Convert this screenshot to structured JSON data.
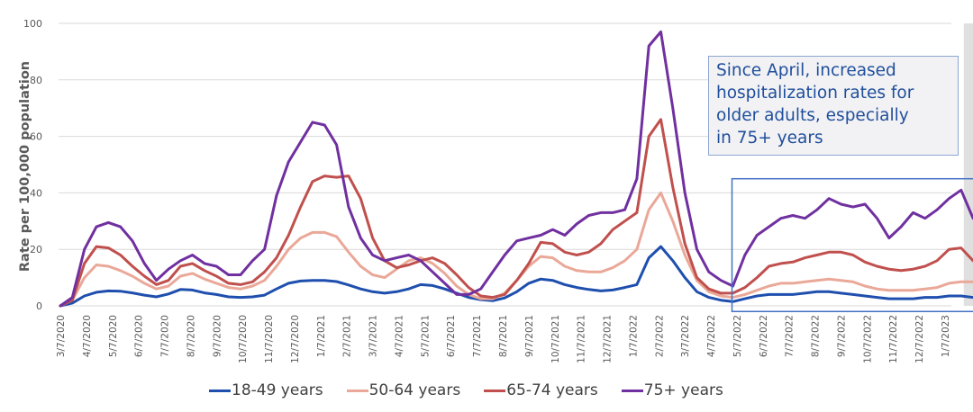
{
  "chart_data": {
    "type": "line",
    "title": "",
    "xlabel": "",
    "ylabel": "Rate per 100,000 population",
    "ylim": [
      0,
      100
    ],
    "yticks": [
      0,
      20,
      40,
      60,
      80,
      100
    ],
    "grid": true,
    "legend_position": "bottom",
    "x_unit": "weeks since 3/7/2020",
    "x": [
      0,
      2,
      4,
      6,
      8,
      10,
      12,
      14,
      16,
      18,
      20,
      22,
      24,
      26,
      28,
      30,
      32,
      34,
      36,
      38,
      40,
      42,
      44,
      46,
      48,
      50,
      52,
      54,
      56,
      58,
      60,
      62,
      64,
      66,
      68,
      70,
      72,
      74,
      76,
      78,
      80,
      82,
      84,
      86,
      88,
      90,
      92,
      94,
      96,
      98,
      100,
      102,
      104,
      106,
      108,
      110,
      112,
      114,
      116,
      118,
      120,
      122,
      124,
      126,
      128,
      130,
      132,
      134,
      136,
      138,
      140,
      142,
      144,
      146,
      148,
      150,
      152
    ],
    "xtick_labels": [
      "3/7/2020",
      "4/7/2020",
      "5/7/2020",
      "6/7/2020",
      "7/7/2020",
      "8/7/2020",
      "9/7/2020",
      "10/7/2020",
      "11/7/2020",
      "12/7/2020",
      "1/7/2021",
      "2/7/2021",
      "3/7/2021",
      "4/7/2021",
      "5/7/2021",
      "6/7/2021",
      "7/7/2021",
      "8/7/2021",
      "9/7/2021",
      "10/7/2021",
      "11/7/2021",
      "12/7/2021",
      "1/7/2022",
      "2/7/2022",
      "3/7/2022",
      "4/7/2022",
      "5/7/2022",
      "6/7/2022",
      "7/7/2022",
      "8/7/2022",
      "9/7/2022",
      "10/7/2022",
      "11/7/2022",
      "12/7/2022",
      "1/7/2023"
    ],
    "series": [
      {
        "name": "18-49 years",
        "color": "#1f4fae",
        "values": [
          0,
          1,
          3.5,
          4.8,
          5.3,
          5.2,
          4.6,
          3.8,
          3.2,
          4.2,
          5.8,
          5.6,
          4.6,
          4,
          3.2,
          3,
          3.2,
          3.8,
          6,
          8,
          8.8,
          9,
          9,
          8.6,
          7.4,
          6,
          5,
          4.5,
          5,
          6,
          7.5,
          7.2,
          6,
          4.5,
          3,
          2.2,
          1.8,
          2.8,
          5,
          8,
          9.5,
          9,
          7.5,
          6.5,
          5.8,
          5.3,
          5.6,
          6.5,
          7.5,
          17,
          21,
          16,
          10,
          5,
          3,
          2,
          1.5,
          2.5,
          3.5,
          4,
          4,
          4,
          4.5,
          5,
          5,
          4.5,
          4,
          3.5,
          3,
          2.5,
          2.5,
          2.5,
          3,
          3,
          3.5,
          3.5,
          3
        ]
      },
      {
        "name": "50-64 years",
        "color": "#eaa898",
        "values": [
          0,
          2,
          10,
          14.5,
          14,
          12.5,
          10.5,
          8,
          6,
          7,
          10.5,
          11.5,
          9.5,
          8,
          6.5,
          6,
          7,
          9,
          14,
          20,
          24,
          26,
          26,
          24.5,
          19,
          14,
          11,
          10,
          13,
          16,
          17,
          15,
          11.5,
          7,
          4,
          2.5,
          2.5,
          4.5,
          9,
          14,
          17.5,
          17,
          14,
          12.5,
          12,
          12,
          13.5,
          16,
          20,
          34,
          40,
          30,
          18,
          9,
          5,
          3.5,
          3,
          4,
          5.5,
          7,
          8,
          8,
          8.5,
          9,
          9.5,
          9,
          8.5,
          7,
          6,
          5.5,
          5.5,
          5.5,
          6,
          6.5,
          8,
          8.5,
          8.5
        ]
      },
      {
        "name": "65-74 years",
        "color": "#c0504d",
        "values": [
          0,
          2,
          15,
          21,
          20.5,
          18,
          14,
          10.5,
          7.5,
          9,
          14,
          15,
          12.5,
          10.5,
          8,
          7.5,
          8.5,
          12,
          17,
          25,
          35,
          44,
          46,
          45.5,
          46,
          38,
          24,
          16,
          13.5,
          14.5,
          16,
          17,
          15,
          11,
          6.5,
          3.5,
          3,
          4,
          9,
          15,
          22.5,
          22,
          19,
          18,
          19,
          22,
          27,
          30,
          33,
          60,
          66,
          42,
          22,
          10,
          6,
          4.5,
          4.5,
          6.5,
          10,
          14,
          15,
          15.5,
          17,
          18,
          19,
          19,
          18,
          15.5,
          14,
          13,
          12.5,
          13,
          14,
          16,
          20,
          20.5,
          16
        ]
      },
      {
        "name": "75+ years",
        "color": "#7030a0",
        "values": [
          0,
          3,
          20,
          28,
          29.5,
          28,
          23,
          15,
          9,
          13,
          16,
          18,
          15,
          14,
          11,
          11,
          16,
          20,
          39,
          51,
          58,
          65,
          64,
          57,
          35,
          24,
          18,
          16,
          17,
          18,
          16,
          12,
          8,
          4,
          4,
          6,
          12,
          18,
          23,
          24,
          25,
          27,
          25,
          29,
          32,
          33,
          33,
          34,
          45,
          92,
          97,
          70,
          40,
          20,
          12,
          9,
          7,
          18,
          25,
          28,
          31,
          32,
          31,
          34,
          38,
          36,
          35,
          36,
          31,
          24,
          28,
          33,
          31,
          34,
          38,
          41,
          31
        ]
      }
    ],
    "annotations": [
      {
        "text": "Since April, increased hospitalization rates for older adults, especially in 75+ years",
        "lines": [
          "Since April, increased",
          "hospitalization rates for",
          "older adults, especially",
          "in 75+ years"
        ]
      }
    ],
    "highlight_region": {
      "x_start_week": 112,
      "x_end_week": 152,
      "y_range": [
        -2,
        45
      ]
    },
    "shaded_region": {
      "x_start_week": 150,
      "x_end_week": 152,
      "meaning": "incomplete data period"
    }
  },
  "legend": {
    "items": [
      {
        "label": "18-49 years",
        "color": "#1f4fae"
      },
      {
        "label": "50-64 years",
        "color": "#eaa898"
      },
      {
        "label": "65-74 years",
        "color": "#c0504d"
      },
      {
        "label": "75+ years",
        "color": "#7030a0"
      }
    ]
  },
  "annotation": {
    "lines": [
      "Since April, increased",
      "hospitalization rates for",
      "older adults, especially",
      "in 75+ years"
    ],
    "text_color": "#1f4e9c",
    "border_color": "#8ea5d2"
  }
}
